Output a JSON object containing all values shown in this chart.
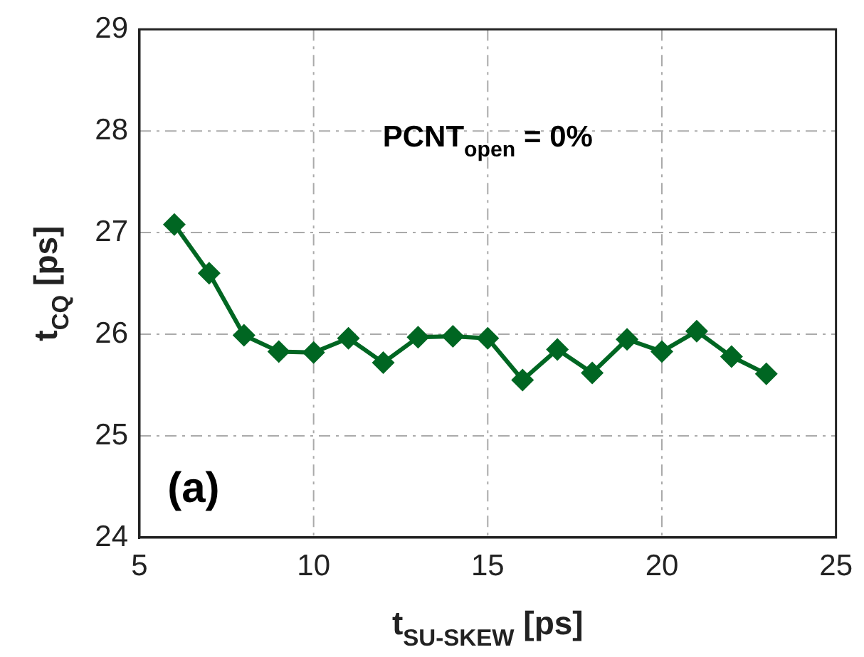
{
  "chart_data": {
    "type": "line",
    "xlabel": "t$_{SU-SKEW}$ [ps]",
    "ylabel": "t$_{CQ}$ [ps]",
    "annotations": [
      "PCNT$_{open}$ = 0%",
      "(a)"
    ],
    "x": [
      6,
      7,
      8,
      9,
      10,
      11,
      12,
      13,
      14,
      15,
      16,
      17,
      18,
      19,
      20,
      21,
      22,
      23
    ],
    "series": [
      {
        "color": "#006622",
        "values": [
          27.08,
          26.6,
          25.99,
          25.83,
          25.82,
          25.96,
          25.72,
          25.97,
          25.98,
          25.96,
          25.55,
          25.85,
          25.62,
          25.95,
          25.83,
          26.03,
          25.78,
          25.61
        ]
      }
    ],
    "xlim": [
      5,
      25
    ],
    "xticks": [
      5,
      10,
      15,
      20,
      25
    ],
    "ylim": [
      24,
      29
    ],
    "yticks": [
      24,
      25,
      26,
      27,
      28,
      29
    ],
    "grid": true,
    "legend": false,
    "marker": "diamond",
    "line_style": "solid"
  }
}
